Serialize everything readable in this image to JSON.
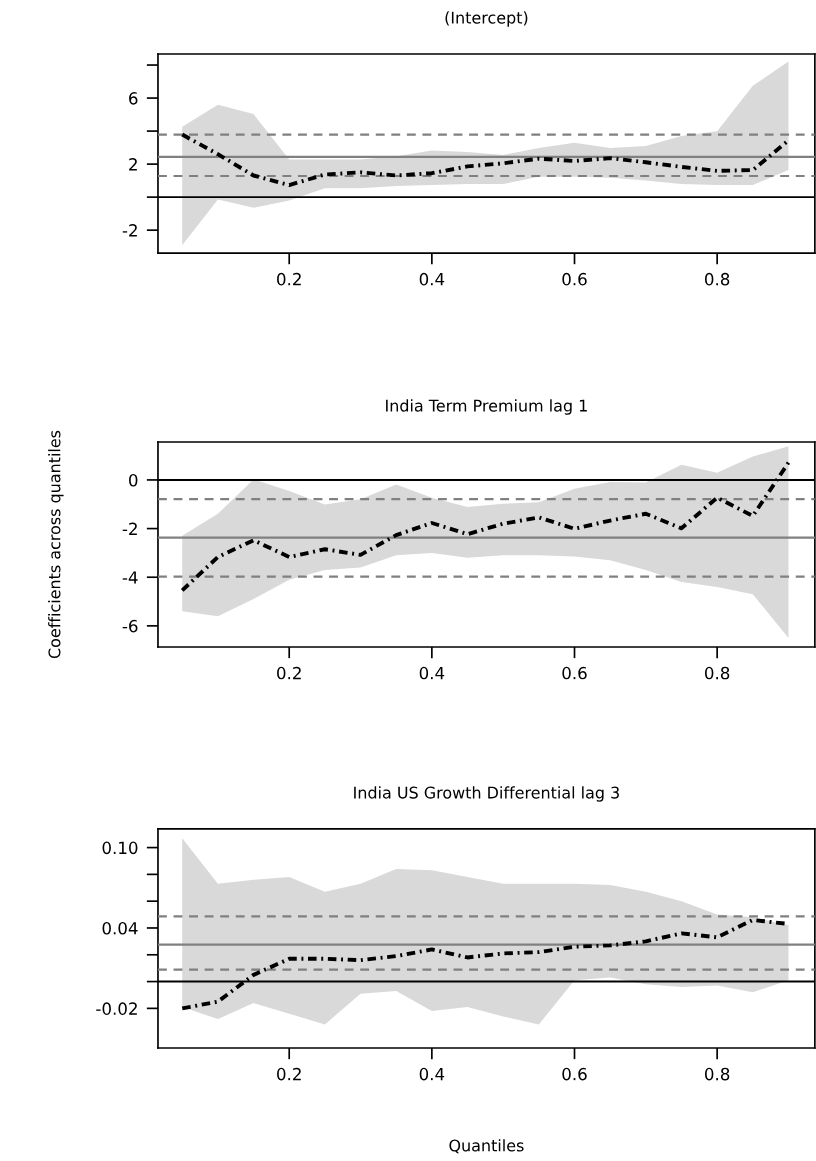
{
  "chart_data": [
    {
      "type": "line",
      "title": "(Intercept)",
      "x": [
        0.05,
        0.1,
        0.15,
        0.2,
        0.25,
        0.3,
        0.35,
        0.4,
        0.45,
        0.5,
        0.55,
        0.6,
        0.65,
        0.7,
        0.75,
        0.8,
        0.85,
        0.9
      ],
      "series": [
        {
          "color": "#000000",
          "line_style": "dashdot",
          "values": [
            3.79,
            2.6,
            1.31,
            0.73,
            1.37,
            1.5,
            1.31,
            1.45,
            1.86,
            2.05,
            2.33,
            2.19,
            2.36,
            2.11,
            1.83,
            1.59,
            1.64,
            3.43
          ],
          "lower": [
            -2.91,
            -0.15,
            -0.65,
            -0.21,
            0.54,
            0.54,
            0.68,
            0.73,
            0.79,
            0.79,
            1.23,
            1.23,
            1.17,
            1.0,
            0.79,
            0.73,
            0.73,
            1.64
          ],
          "upper": [
            4.26,
            5.59,
            5.03,
            2.28,
            2.28,
            2.28,
            2.47,
            2.83,
            2.74,
            2.55,
            2.97,
            3.3,
            2.97,
            3.1,
            3.7,
            3.99,
            6.74,
            8.21
          ]
        }
      ],
      "xlim": [
        0.016,
        0.937
      ],
      "ylim": [
        -3.39,
        8.67
      ],
      "xticks": [
        0.2,
        0.4,
        0.6,
        0.8
      ],
      "yticks": [
        {
          "value": -2,
          "label": "-2"
        },
        {
          "value": 0,
          "label": null
        },
        {
          "value": 2,
          "label": "2"
        },
        {
          "value": 4,
          "label": null
        },
        {
          "value": 6,
          "label": "6"
        },
        {
          "value": 8,
          "label": null
        }
      ],
      "ref_lines": [
        {
          "axis": "y",
          "value": 0,
          "color": "#000000",
          "line_style": "solid"
        },
        {
          "axis": "y",
          "value": 2.44,
          "color": "#808080",
          "line_style": "solid"
        },
        {
          "axis": "y",
          "value": 3.79,
          "color": "#808080",
          "line_style": "dashed"
        },
        {
          "axis": "y",
          "value": 1.28,
          "color": "#808080",
          "line_style": "dashed"
        }
      ]
    },
    {
      "type": "line",
      "title": "India Term Premium lag 1",
      "ylabel": "Coefficients across quantiles",
      "x": [
        0.05,
        0.1,
        0.15,
        0.2,
        0.25,
        0.3,
        0.35,
        0.4,
        0.45,
        0.5,
        0.55,
        0.6,
        0.65,
        0.7,
        0.75,
        0.8,
        0.85,
        0.9
      ],
      "series": [
        {
          "color": "#000000",
          "line_style": "dashdot",
          "values": [
            -4.54,
            -3.17,
            -2.48,
            -3.17,
            -2.85,
            -3.08,
            -2.27,
            -1.77,
            -2.23,
            -1.8,
            -1.54,
            -2.01,
            -1.67,
            -1.39,
            -1.99,
            -0.73,
            -1.48,
            0.71
          ],
          "lower": [
            -5.4,
            -5.6,
            -4.9,
            -4.1,
            -3.7,
            -3.6,
            -3.1,
            -3.0,
            -3.2,
            -3.1,
            -3.1,
            -3.15,
            -3.3,
            -3.7,
            -4.2,
            -4.4,
            -4.7,
            -6.5
          ],
          "upper": [
            -2.29,
            -1.39,
            0.02,
            -0.45,
            -1.01,
            -0.79,
            -0.19,
            -0.73,
            -1.11,
            -0.98,
            -0.92,
            -0.36,
            -0.08,
            -0.11,
            0.62,
            0.3,
            0.96,
            1.39
          ]
        }
      ],
      "xlim": [
        0.016,
        0.937
      ],
      "ylim": [
        -6.87,
        1.56
      ],
      "xticks": [
        0.2,
        0.4,
        0.6,
        0.8
      ],
      "yticks": [
        {
          "value": -6,
          "label": "-6"
        },
        {
          "value": -4,
          "label": "-4"
        },
        {
          "value": -2,
          "label": "-2"
        },
        0
      ],
      "ref_lines": [
        {
          "axis": "y",
          "value": 0,
          "color": "#000000",
          "line_style": "solid"
        },
        {
          "axis": "y",
          "value": -2.37,
          "color": "#808080",
          "line_style": "solid"
        },
        {
          "axis": "y",
          "value": -0.79,
          "color": "#808080",
          "line_style": "dashed"
        },
        {
          "axis": "y",
          "value": -3.98,
          "color": "#808080",
          "line_style": "dashed"
        }
      ]
    },
    {
      "type": "line",
      "title": "India US Growth Differential lag 3",
      "xlabel": "Quantiles",
      "x": [
        0.05,
        0.1,
        0.15,
        0.2,
        0.25,
        0.3,
        0.35,
        0.4,
        0.45,
        0.5,
        0.55,
        0.6,
        0.65,
        0.7,
        0.75,
        0.8,
        0.85,
        0.9
      ],
      "series": [
        {
          "color": "#000000",
          "line_style": "dashdot",
          "values": [
            -0.02,
            -0.015,
            0.005,
            0.017,
            0.017,
            0.016,
            0.019,
            0.024,
            0.018,
            0.021,
            0.022,
            0.026,
            0.027,
            0.03,
            0.036,
            0.033,
            0.046,
            0.043
          ],
          "lower": [
            -0.019,
            -0.028,
            -0.016,
            -0.024,
            -0.032,
            -0.009,
            -0.007,
            -0.022,
            -0.019,
            -0.026,
            -0.032,
            0.001,
            0.003,
            -0.002,
            -0.004,
            -0.003,
            -0.008,
            0.001
          ],
          "upper": [
            0.107,
            0.073,
            0.076,
            0.078,
            0.067,
            0.073,
            0.084,
            0.083,
            0.078,
            0.073,
            0.073,
            0.073,
            0.072,
            0.067,
            0.06,
            0.05,
            0.048,
            0.042
          ]
        }
      ],
      "xlim": [
        0.016,
        0.937
      ],
      "ylim": [
        -0.0496,
        0.1139
      ],
      "xticks": [
        0.2,
        0.4,
        0.6,
        0.8
      ],
      "yticks": [
        {
          "value": -0.02,
          "label": "-0.02"
        },
        {
          "value": 0.0,
          "label": null
        },
        {
          "value": 0.02,
          "label": null
        },
        {
          "value": 0.04,
          "label": "0.04"
        },
        {
          "value": 0.06,
          "label": null
        },
        {
          "value": 0.08,
          "label": null
        },
        {
          "value": 0.1,
          "label": "0.10"
        }
      ],
      "ref_lines": [
        {
          "axis": "y",
          "value": 0,
          "color": "#000000",
          "line_style": "solid"
        },
        {
          "axis": "y",
          "value": 0.0276,
          "color": "#808080",
          "line_style": "solid"
        },
        {
          "axis": "y",
          "value": 0.0487,
          "color": "#808080",
          "line_style": "dashed"
        },
        {
          "axis": "y",
          "value": 0.0089,
          "color": "#808080",
          "line_style": "dashed"
        }
      ]
    }
  ]
}
